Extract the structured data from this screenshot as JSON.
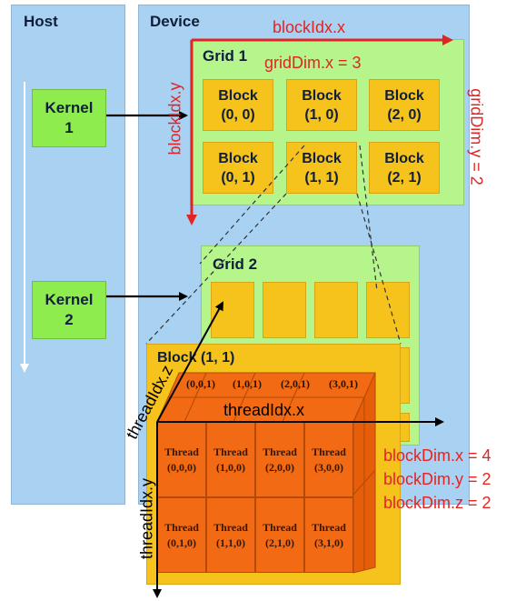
{
  "host": {
    "title": "Host"
  },
  "device": {
    "title": "Device"
  },
  "kernels": [
    {
      "line1": "Kernel",
      "line2": "1"
    },
    {
      "line1": "Kernel",
      "line2": "2"
    }
  ],
  "grid1": {
    "title": "Grid 1",
    "gridDimX": "gridDim.x = 3",
    "gridDimY": "gridDim.y = 2",
    "blockIdxX": "blockIdx.x",
    "blockIdxY": "blockIdx.y",
    "blocks": [
      {
        "label": "Block",
        "coord": "(0, 0)"
      },
      {
        "label": "Block",
        "coord": "(1, 0)"
      },
      {
        "label": "Block",
        "coord": "(2, 0)"
      },
      {
        "label": "Block",
        "coord": "(0, 1)"
      },
      {
        "label": "Block",
        "coord": "(1, 1)"
      },
      {
        "label": "Block",
        "coord": "(2, 1)"
      }
    ]
  },
  "grid2": {
    "title": "Grid 2"
  },
  "block11": {
    "title": "Block (1, 1)",
    "top_labels": [
      "(0,0,1)",
      "(1,0,1)",
      "(2,0,1)",
      "(3,0,1)"
    ],
    "threadIdxX": "threadIdx.x",
    "threadIdxY": "threadIdx.y",
    "threadIdxZ": "threadIdx.z",
    "threads": [
      {
        "label": "Thread",
        "coord": "(0,0,0)"
      },
      {
        "label": "Thread",
        "coord": "(1,0,0)"
      },
      {
        "label": "Thread",
        "coord": "(2,0,0)"
      },
      {
        "label": "Thread",
        "coord": "(3,0,0)"
      },
      {
        "label": "Thread",
        "coord": "(0,1,0)"
      },
      {
        "label": "Thread",
        "coord": "(1,1,0)"
      },
      {
        "label": "Thread",
        "coord": "(2,1,0)"
      },
      {
        "label": "Thread",
        "coord": "(3,1,0)"
      }
    ],
    "blockDim": [
      "blockDim.x = 4",
      "blockDim.y = 2",
      "blockDim.z = 2"
    ]
  },
  "colors": {
    "panel": "#a9d1f1",
    "green": "#b6f58c",
    "kernel": "#8fec4f",
    "block": "#f6c21c",
    "thread": "#f26a13",
    "accent": "#e32424"
  }
}
